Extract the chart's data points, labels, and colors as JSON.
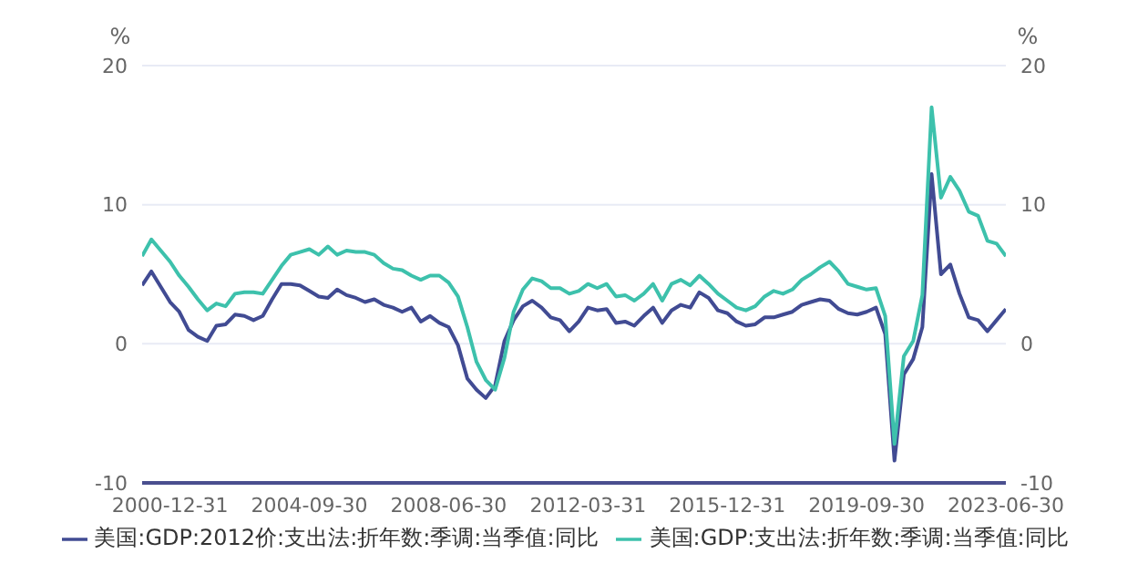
{
  "chart_data": {
    "type": "line",
    "ylabel": "%",
    "y2label": "%",
    "x": [
      "2000-03-31",
      "2000-06-30",
      "2000-09-30",
      "2000-12-31",
      "2001-03-31",
      "2001-06-30",
      "2001-09-30",
      "2001-12-31",
      "2002-03-31",
      "2002-06-30",
      "2002-09-30",
      "2002-12-31",
      "2003-03-31",
      "2003-06-30",
      "2003-09-30",
      "2003-12-31",
      "2004-03-31",
      "2004-06-30",
      "2004-09-30",
      "2004-12-31",
      "2005-03-31",
      "2005-06-30",
      "2005-09-30",
      "2005-12-31",
      "2006-03-31",
      "2006-06-30",
      "2006-09-30",
      "2006-12-31",
      "2007-03-31",
      "2007-06-30",
      "2007-09-30",
      "2007-12-31",
      "2008-03-31",
      "2008-06-30",
      "2008-09-30",
      "2008-12-31",
      "2009-03-31",
      "2009-06-30",
      "2009-09-30",
      "2009-12-31",
      "2010-03-31",
      "2010-06-30",
      "2010-09-30",
      "2010-12-31",
      "2011-03-31",
      "2011-06-30",
      "2011-09-30",
      "2011-12-31",
      "2012-03-31",
      "2012-06-30",
      "2012-09-30",
      "2012-12-31",
      "2013-03-31",
      "2013-06-30",
      "2013-09-30",
      "2013-12-31",
      "2014-03-31",
      "2014-06-30",
      "2014-09-30",
      "2014-12-31",
      "2015-03-31",
      "2015-06-30",
      "2015-09-30",
      "2015-12-31",
      "2016-03-31",
      "2016-06-30",
      "2016-09-30",
      "2016-12-31",
      "2017-03-31",
      "2017-06-30",
      "2017-09-30",
      "2017-12-31",
      "2018-03-31",
      "2018-06-30",
      "2018-09-30",
      "2018-12-31",
      "2019-03-31",
      "2019-06-30",
      "2019-09-30",
      "2019-12-31",
      "2020-03-31",
      "2020-06-30",
      "2020-09-30",
      "2020-12-31",
      "2021-03-31",
      "2021-06-30",
      "2021-09-30",
      "2021-12-31",
      "2022-03-31",
      "2022-06-30",
      "2022-09-30",
      "2022-12-31",
      "2023-03-31",
      "2023-06-30"
    ],
    "series": [
      {
        "name": "美国:GDP:2012价:支出法:折年数:季调:当季值:同比",
        "color": "#414b93",
        "values": [
          4.2,
          5.2,
          4.1,
          3.0,
          2.3,
          1.0,
          0.5,
          0.2,
          1.3,
          1.4,
          2.1,
          2.0,
          1.7,
          2.0,
          3.2,
          4.3,
          4.3,
          4.2,
          3.8,
          3.4,
          3.3,
          3.9,
          3.5,
          3.3,
          3.0,
          3.2,
          2.8,
          2.6,
          2.3,
          2.6,
          1.6,
          2.0,
          1.5,
          1.2,
          -0.1,
          -2.5,
          -3.3,
          -3.9,
          -3.0,
          0.2,
          1.7,
          2.7,
          3.1,
          2.6,
          1.9,
          1.7,
          0.9,
          1.6,
          2.6,
          2.4,
          2.5,
          1.5,
          1.6,
          1.3,
          2.0,
          2.6,
          1.5,
          2.4,
          2.8,
          2.6,
          3.7,
          3.3,
          2.4,
          2.2,
          1.6,
          1.3,
          1.4,
          1.9,
          1.9,
          2.1,
          2.3,
          2.8,
          3.0,
          3.2,
          3.1,
          2.5,
          2.2,
          2.1,
          2.3,
          2.6,
          0.7,
          -8.4,
          -2.2,
          -1.1,
          1.2,
          12.2,
          5.0,
          5.7,
          3.6,
          1.9,
          1.7,
          0.9,
          1.7,
          2.5
        ]
      },
      {
        "name": "美国:GDP:支出法:折年数:季调:当季值:同比",
        "color": "#3dc1ac",
        "values": [
          6.3,
          7.5,
          6.7,
          5.9,
          4.9,
          4.1,
          3.2,
          2.4,
          2.9,
          2.7,
          3.6,
          3.7,
          3.7,
          3.6,
          4.6,
          5.6,
          6.4,
          6.6,
          6.8,
          6.4,
          7.0,
          6.4,
          6.7,
          6.6,
          6.6,
          6.4,
          5.8,
          5.4,
          5.3,
          4.9,
          4.6,
          4.9,
          4.9,
          4.4,
          3.4,
          1.2,
          -1.3,
          -2.6,
          -3.3,
          -1.0,
          2.3,
          3.9,
          4.7,
          4.5,
          4.0,
          4.0,
          3.6,
          3.8,
          4.3,
          4.0,
          4.3,
          3.4,
          3.5,
          3.1,
          3.6,
          4.3,
          3.1,
          4.3,
          4.6,
          4.2,
          4.9,
          4.3,
          3.6,
          3.1,
          2.6,
          2.4,
          2.7,
          3.4,
          3.8,
          3.6,
          3.9,
          4.6,
          5.0,
          5.5,
          5.9,
          5.2,
          4.3,
          4.1,
          3.9,
          4.0,
          2.0,
          -7.2,
          -0.9,
          0.2,
          3.5,
          17.0,
          10.5,
          12.0,
          11.0,
          9.5,
          9.2,
          7.4,
          7.2,
          6.3
        ]
      }
    ],
    "xlim": [
      "2000-03-31",
      "2023-06-30"
    ],
    "xticks": [
      "2000-12-31",
      "2004-09-30",
      "2008-06-30",
      "2012-03-31",
      "2015-12-31",
      "2019-09-30",
      "2023-06-30"
    ],
    "ylim": [
      -10,
      20
    ],
    "yticks": [
      -10,
      0,
      10,
      20
    ],
    "y2lim": [
      -10,
      20
    ],
    "y2ticks": [
      -10,
      0,
      10,
      20
    ],
    "grid": "y",
    "legend": "bottom",
    "marker": "none",
    "line_style": "solid"
  }
}
